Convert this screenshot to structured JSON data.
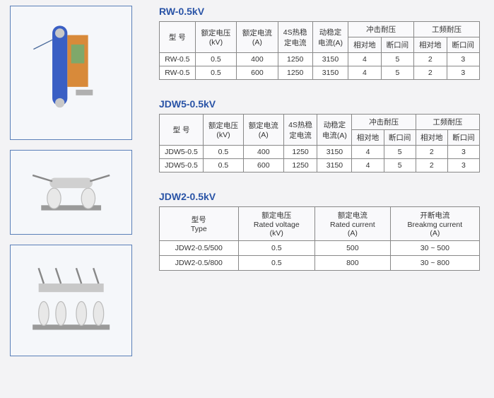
{
  "tables": [
    {
      "title": "RW-0.5kV",
      "headers_top": [
        "型 号",
        "额定电压\n(kV)",
        "额定电流\n(A)",
        "4S热稳\n定电流",
        "动稳定\n电流(A)",
        "冲击耐压",
        "工频耐压"
      ],
      "headers_sub": [
        "相对地",
        "断口间",
        "相对地",
        "断口间"
      ],
      "rows": [
        [
          "RW-0.5",
          "0.5",
          "400",
          "1250",
          "3150",
          "4",
          "5",
          "2",
          "3"
        ],
        [
          "RW-0.5",
          "0.5",
          "600",
          "1250",
          "3150",
          "4",
          "5",
          "2",
          "3"
        ]
      ]
    },
    {
      "title": "JDW5-0.5kV",
      "headers_top": [
        "型 号",
        "额定电压\n(kV)",
        "额定电流\n(A)",
        "4S热稳\n定电流",
        "动稳定\n电流(A)",
        "冲击耐压",
        "工频耐压"
      ],
      "headers_sub": [
        "相对地",
        "断口间",
        "相对地",
        "断口间"
      ],
      "rows": [
        [
          "JDW5-0.5",
          "0.5",
          "400",
          "1250",
          "3150",
          "4",
          "5",
          "2",
          "3"
        ],
        [
          "JDW5-0.5",
          "0.5",
          "600",
          "1250",
          "3150",
          "4",
          "5",
          "2",
          "3"
        ]
      ]
    },
    {
      "title": "JDW2-0.5kV",
      "headers": [
        "型号\nType",
        "额定电压\nRated voltage\n(kV)",
        "额定电流\nRated current\n(A)",
        "开断电流\nBreakmg current\n(A)"
      ],
      "rows": [
        [
          "JDW2-0.5/500",
          "0.5",
          "500",
          "30 ~ 500"
        ],
        [
          "JDW2-0.5/800",
          "0.5",
          "800",
          "30 ~ 800"
        ]
      ]
    }
  ]
}
